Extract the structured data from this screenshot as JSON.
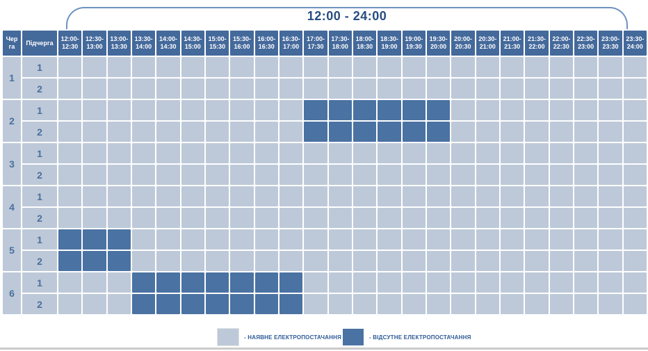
{
  "title": "12:00 - 24:00",
  "colors": {
    "header_bg": "#44699b",
    "cell_on": "#bdc9d8",
    "cell_off": "#4a72a2",
    "label_text": "#4a6f9f",
    "title_text": "#274d82",
    "bracket": "#6e92c0",
    "legend_text": "#2d5a96"
  },
  "table": {
    "queue_header": "Черга",
    "subqueue_header": "Підчерга"
  },
  "legend": {
    "on_label": "- НАЯВНЕ ЕЛЕКТРОПОСТАЧАННЯ",
    "off_label": "- ВІДСУТНЕ ЕЛЕКТРОПОСТАЧАННЯ"
  },
  "chart_data": {
    "type": "heatmap",
    "title": "12:00 - 24:00",
    "x_labels": [
      "12:00-12:30",
      "12:30-13:00",
      "13:00-13:30",
      "13:30-14:00",
      "14:00-14:30",
      "14:30-15:00",
      "15:00-15:30",
      "15:30-16:00",
      "16:00-16:30",
      "16:30-17:00",
      "17:00-17:30",
      "17:30-18:00",
      "18:00-18:30",
      "18:30-19:00",
      "19:00-19:30",
      "19:30-20:00",
      "20:00-20:30",
      "20:30-21:00",
      "21:00-21:30",
      "21:30-22:00",
      "22:00-22:30",
      "22:30-23:00",
      "23:00-23:30",
      "23:30-24:00"
    ],
    "cell_states": {
      "on": "наявне електропостачання",
      "off": "відсутнє електропостачання"
    },
    "queues": [
      {
        "queue": "1",
        "subqueues": [
          {
            "subqueue": "1",
            "off_slots": [],
            "off_time": ""
          },
          {
            "subqueue": "2",
            "off_slots": [],
            "off_time": ""
          }
        ]
      },
      {
        "queue": "2",
        "subqueues": [
          {
            "subqueue": "1",
            "off_slots": [
              10,
              11,
              12,
              13,
              14,
              15
            ],
            "off_time": "17:00-20:00"
          },
          {
            "subqueue": "2",
            "off_slots": [
              10,
              11,
              12,
              13,
              14,
              15
            ],
            "off_time": "17:00-20:00"
          }
        ]
      },
      {
        "queue": "3",
        "subqueues": [
          {
            "subqueue": "1",
            "off_slots": [],
            "off_time": ""
          },
          {
            "subqueue": "2",
            "off_slots": [],
            "off_time": ""
          }
        ]
      },
      {
        "queue": "4",
        "subqueues": [
          {
            "subqueue": "1",
            "off_slots": [],
            "off_time": ""
          },
          {
            "subqueue": "2",
            "off_slots": [],
            "off_time": ""
          }
        ]
      },
      {
        "queue": "5",
        "subqueues": [
          {
            "subqueue": "1",
            "off_slots": [
              0,
              1,
              2
            ],
            "off_time": "12:00-13:30"
          },
          {
            "subqueue": "2",
            "off_slots": [
              0,
              1,
              2
            ],
            "off_time": "12:00-13:30"
          }
        ]
      },
      {
        "queue": "6",
        "subqueues": [
          {
            "subqueue": "1",
            "off_slots": [
              3,
              4,
              5,
              6,
              7,
              8,
              9
            ],
            "off_time": "13:30-17:00"
          },
          {
            "subqueue": "2",
            "off_slots": [
              3,
              4,
              5,
              6,
              7,
              8,
              9
            ],
            "off_time": "13:30-17:00"
          }
        ]
      }
    ]
  }
}
